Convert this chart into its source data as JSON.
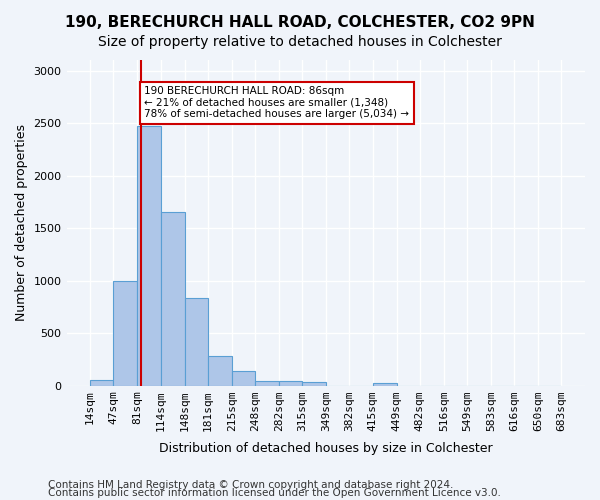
{
  "title1": "190, BERECHURCH HALL ROAD, COLCHESTER, CO2 9PN",
  "title2": "Size of property relative to detached houses in Colchester",
  "xlabel": "Distribution of detached houses by size in Colchester",
  "ylabel": "Number of detached properties",
  "bin_labels": [
    "14sqm",
    "47sqm",
    "81sqm",
    "114sqm",
    "148sqm",
    "181sqm",
    "215sqm",
    "248sqm",
    "282sqm",
    "315sqm",
    "349sqm",
    "382sqm",
    "415sqm",
    "449sqm",
    "482sqm",
    "516sqm",
    "549sqm",
    "583sqm",
    "616sqm",
    "650sqm",
    "683sqm"
  ],
  "bin_edges": [
    14,
    47,
    81,
    114,
    148,
    181,
    215,
    248,
    282,
    315,
    349,
    382,
    415,
    449,
    482,
    516,
    549,
    583,
    616,
    650,
    683
  ],
  "bar_heights": [
    50,
    1000,
    2470,
    1650,
    830,
    280,
    140,
    40,
    40,
    30,
    0,
    0,
    20,
    0,
    0,
    0,
    0,
    0,
    0,
    0
  ],
  "bar_color": "#aec6e8",
  "bar_edge_color": "#5a9fd4",
  "property_value": 86,
  "marker_color": "#cc0000",
  "annotation_text": "190 BERECHURCH HALL ROAD: 86sqm\n← 21% of detached houses are smaller (1,348)\n78% of semi-detached houses are larger (5,034) →",
  "annotation_box_color": "#ffffff",
  "annotation_box_edge_color": "#cc0000",
  "ylim": [
    0,
    3100
  ],
  "yticks": [
    0,
    500,
    1000,
    1500,
    2000,
    2500,
    3000
  ],
  "footer1": "Contains HM Land Registry data © Crown copyright and database right 2024.",
  "footer2": "Contains public sector information licensed under the Open Government Licence v3.0.",
  "background_color": "#f0f4fa",
  "axes_background_color": "#f0f4fa",
  "grid_color": "#ffffff",
  "title_fontsize": 11,
  "subtitle_fontsize": 10,
  "axis_label_fontsize": 9,
  "tick_fontsize": 8,
  "footer_fontsize": 7.5
}
